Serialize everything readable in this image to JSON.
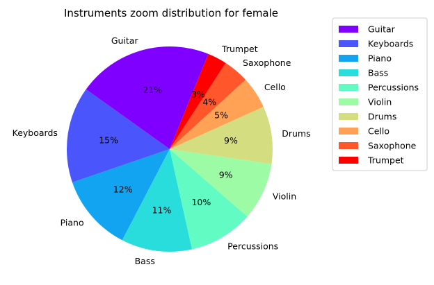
{
  "chart_data": {
    "type": "pie",
    "title": "Instruments zoom distribution for female",
    "categories": [
      "Guitar",
      "Keyboards",
      "Piano",
      "Bass",
      "Percussions",
      "Violin",
      "Drums",
      "Cello",
      "Saxophone",
      "Trumpet"
    ],
    "values": [
      21,
      15,
      12,
      11,
      10,
      9,
      9,
      5,
      4,
      3
    ],
    "value_labels": [
      "21%",
      "15%",
      "12%",
      "11%",
      "10%",
      "9%",
      "9%",
      "5%",
      "4%",
      "3%"
    ],
    "colors": [
      "#8000ff",
      "#4a55fb",
      "#12a4f0",
      "#2adddd",
      "#62fbc4",
      "#9cfba4",
      "#d4dd80",
      "#ffa256",
      "#ff562c",
      "#ff0000"
    ],
    "start_angle_deg": 68,
    "direction": "counterclockwise",
    "legend_position": "right"
  }
}
